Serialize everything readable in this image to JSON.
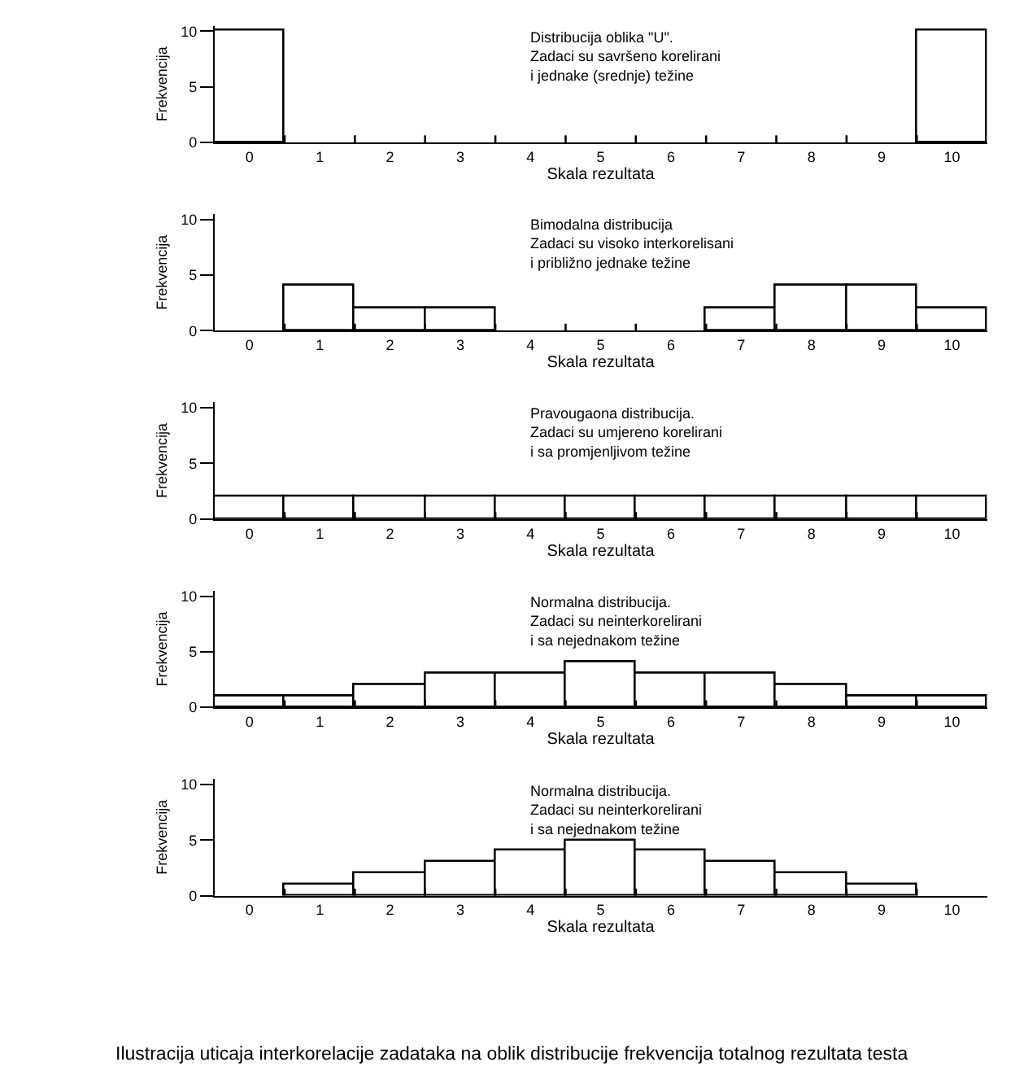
{
  "chart_data": [
    {
      "type": "bar",
      "categories": [
        "0",
        "1",
        "2",
        "3",
        "4",
        "5",
        "6",
        "7",
        "8",
        "9",
        "10"
      ],
      "values": [
        10,
        0,
        0,
        0,
        0,
        0,
        0,
        0,
        0,
        0,
        10
      ],
      "color": "#ffffff",
      "xlabel": "Skala rezultata",
      "ylabel": "Frekvencija",
      "ylim": [
        0,
        10.5
      ],
      "yticks": [
        0,
        5,
        10
      ],
      "annotations": [
        "Distribucija oblika \"U\".\nZadaci su savršeno korelirani\ni jednake (srednje) težine"
      ]
    },
    {
      "type": "bar",
      "categories": [
        "0",
        "1",
        "2",
        "3",
        "4",
        "5",
        "6",
        "7",
        "8",
        "9",
        "10"
      ],
      "values": [
        0,
        4,
        2,
        2,
        0,
        0,
        0,
        2,
        4,
        4,
        2
      ],
      "color": "#ffffff",
      "xlabel": "Skala rezultata",
      "ylabel": "Frekvencija",
      "ylim": [
        0,
        10.5
      ],
      "yticks": [
        0,
        5,
        10
      ],
      "annotations": [
        "Bimodalna distribucija\nZadaci su visoko interkorelisani\ni približno jednake težine"
      ]
    },
    {
      "type": "bar",
      "categories": [
        "0",
        "1",
        "2",
        "3",
        "4",
        "5",
        "6",
        "7",
        "8",
        "9",
        "10"
      ],
      "values": [
        2,
        2,
        2,
        2,
        2,
        2,
        2,
        2,
        2,
        2,
        2
      ],
      "color": "#ffffff",
      "xlabel": "Skala rezultata",
      "ylabel": "Frekvencija",
      "ylim": [
        0,
        10.5
      ],
      "yticks": [
        0,
        5,
        10
      ],
      "annotations": [
        "Pravougaona distribucija.\nZadaci su umjereno korelirani\ni sa promjenljivom težine"
      ]
    },
    {
      "type": "bar",
      "categories": [
        "0",
        "1",
        "2",
        "3",
        "4",
        "5",
        "6",
        "7",
        "8",
        "9",
        "10"
      ],
      "values": [
        1,
        1,
        2,
        3,
        3,
        4,
        3,
        3,
        2,
        1,
        1
      ],
      "color": "#ffffff",
      "xlabel": "Skala rezultata",
      "ylabel": "Frekvencija",
      "ylim": [
        0,
        10.5
      ],
      "yticks": [
        0,
        5,
        10
      ],
      "annotations": [
        "Normalna distribucija.\nZadaci su neinterkorelirani\ni sa nejednakom težine"
      ]
    },
    {
      "type": "bar",
      "categories": [
        "0",
        "1",
        "2",
        "3",
        "4",
        "5",
        "6",
        "7",
        "8",
        "9",
        "10"
      ],
      "values": [
        0,
        1,
        2,
        3,
        4,
        5,
        4,
        3,
        2,
        1,
        0
      ],
      "color": "#ffffff",
      "xlabel": "Skala rezultata",
      "ylabel": "Frekvencija",
      "ylim": [
        0,
        10.5
      ],
      "yticks": [
        0,
        5,
        10
      ],
      "annotations": [
        "Normalna distribucija.\nZadaci su neinterkorelirani\ni sa nejednakom težine",
        "Ilustracija uticaja interkorelacije zadataka na oblik distribucije frekvencija totalnog rezultata testa"
      ]
    }
  ]
}
